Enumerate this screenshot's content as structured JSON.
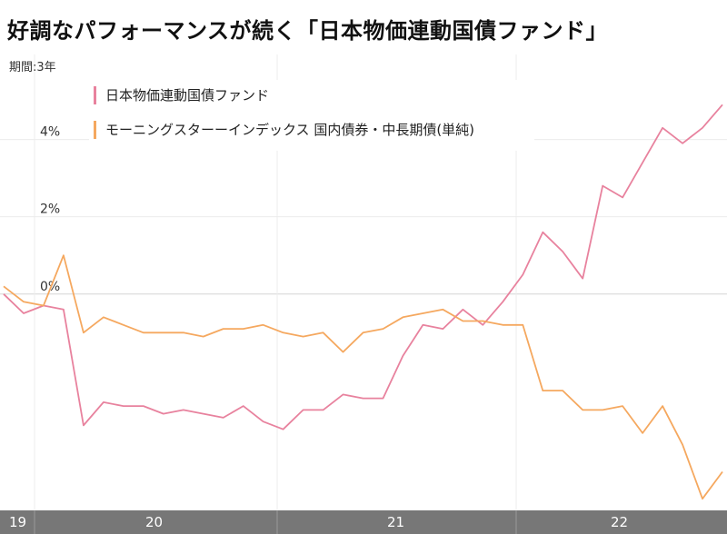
{
  "title": "好調なパフォーマンスが続く「日本物価連動国債ファンド」",
  "period_label": "期間:3年",
  "chart_data": {
    "type": "line",
    "title": "好調なパフォーマンスが続く「日本物価連動国債ファンド」",
    "xlabel": "",
    "ylabel": "",
    "x_ticks": [
      "19",
      "20",
      "21",
      "22"
    ],
    "y_ticks": [
      "4%",
      "2%",
      "0%"
    ],
    "ylim": [
      -5.6,
      6.2
    ],
    "grid": true,
    "legend_position": "top-left",
    "x": [
      0,
      1,
      2,
      3,
      4,
      5,
      6,
      7,
      8,
      9,
      10,
      11,
      12,
      13,
      14,
      15,
      16,
      17,
      18,
      19,
      20,
      21,
      22,
      23,
      24,
      25,
      26,
      27,
      28,
      29,
      30,
      31,
      32,
      33,
      34,
      35,
      36
    ],
    "series": [
      {
        "name": "日本物価連動国債ファンド",
        "color": "#e8829e",
        "values": [
          0.0,
          -0.5,
          -0.3,
          -0.4,
          -3.4,
          -2.8,
          -2.9,
          -2.9,
          -3.1,
          -3.0,
          -3.1,
          -3.2,
          -2.9,
          -3.3,
          -3.5,
          -3.0,
          -3.0,
          -2.6,
          -2.7,
          -2.7,
          -1.6,
          -0.8,
          -0.9,
          -0.4,
          -0.8,
          -0.2,
          0.5,
          1.6,
          1.1,
          0.4,
          2.8,
          2.5,
          3.4,
          4.3,
          3.9,
          4.3,
          4.9
        ]
      },
      {
        "name": "モーニングスターーインデックス 国内債券・中長期債(単純)",
        "color": "#f5a85f",
        "values": [
          0.2,
          -0.2,
          -0.3,
          1.0,
          -1.0,
          -0.6,
          -0.8,
          -1.0,
          -1.0,
          -1.0,
          -1.1,
          -0.9,
          -0.9,
          -0.8,
          -1.0,
          -1.1,
          -1.0,
          -1.5,
          -1.0,
          -0.9,
          -0.6,
          -0.5,
          -0.4,
          -0.7,
          -0.7,
          -0.8,
          -0.8,
          -2.5,
          -2.5,
          -3.0,
          -3.0,
          -2.9,
          -3.6,
          -2.9,
          -3.9,
          -5.3,
          -4.6
        ]
      }
    ]
  }
}
